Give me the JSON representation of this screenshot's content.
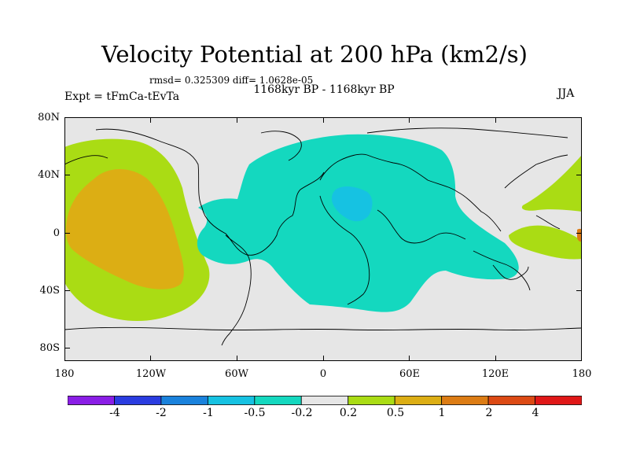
{
  "title": "Velocity Potential at 200 hPa (km2/s)",
  "stats": "rmsd= 0.325309 diff= 1.0628e-05",
  "period": "1168kyr BP - 1168kyr BP",
  "experiment": "Expt = tFmCa-tEvTa",
  "season": "JJA",
  "y_ticks": [
    "80N",
    "40N",
    "0",
    "40S",
    "80S"
  ],
  "x_ticks": [
    "180",
    "120W",
    "60W",
    "0",
    "60E",
    "120E",
    "180"
  ],
  "colorbar": {
    "colors": [
      "#8a1ee6",
      "#2a3ce0",
      "#1a82dc",
      "#16c2e2",
      "#14d8bf",
      "#e6e6e6",
      "#aadc14",
      "#dcae14",
      "#dc7c14",
      "#dc4a14",
      "#e01818"
    ],
    "labels": [
      "-4",
      "-2",
      "-1",
      "-0.5",
      "-0.2",
      "0.2",
      "0.5",
      "1",
      "2",
      "4"
    ]
  }
}
